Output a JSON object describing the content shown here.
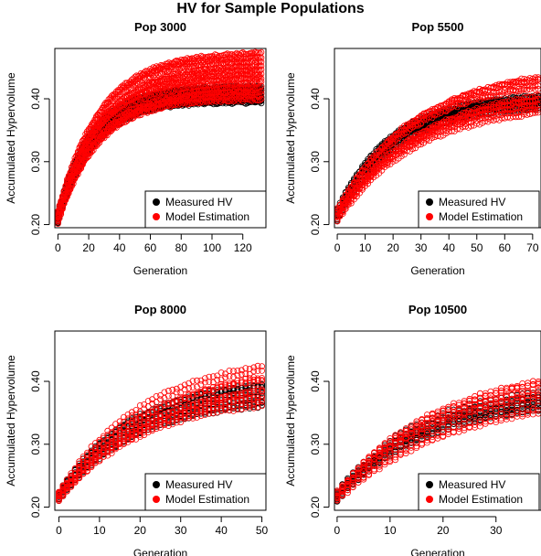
{
  "title": "HV for Sample Populations",
  "colors": {
    "measured": "#000000",
    "model": "#ff0000"
  },
  "chart_data": [
    {
      "type": "scatter",
      "title": "Pop 3000",
      "xlabel": "Generation",
      "ylabel": "Accumulated Hypervolume",
      "xlim": [
        -2,
        135
      ],
      "ylim": [
        0.195,
        0.48
      ],
      "xticks": [
        0,
        20,
        40,
        60,
        80,
        100,
        120
      ],
      "yticks": [
        0.2,
        0.3,
        0.4
      ],
      "ytick_labels": [
        "0.20",
        "0.30",
        "0.40"
      ],
      "legend": [
        "Measured HV",
        "Model Estimation"
      ],
      "legend_position": "bottom-right",
      "x_max": 132,
      "series": [
        {
          "name": "Measured HV",
          "start": [
            0.203,
            0.22
          ],
          "end": [
            0.395,
            0.42
          ],
          "k": 0.045,
          "x_step": 1
        },
        {
          "name": "Model Estimation",
          "start": [
            0.203,
            0.22
          ],
          "end": [
            0.4,
            0.475
          ],
          "k": 0.038,
          "x_step": 1
        }
      ]
    },
    {
      "type": "scatter",
      "title": "Pop 5500",
      "xlabel": "Generation",
      "ylabel": "Accumulated Hypervolume",
      "xlim": [
        -1,
        73
      ],
      "ylim": [
        0.195,
        0.48
      ],
      "xticks": [
        0,
        10,
        20,
        30,
        40,
        50,
        60,
        70
      ],
      "yticks": [
        0.2,
        0.3,
        0.4
      ],
      "ytick_labels": [
        "0.20",
        "0.30",
        "0.40"
      ],
      "legend": [
        "Measured HV",
        "Model Estimation"
      ],
      "legend_position": "bottom-right",
      "x_max": 72,
      "series": [
        {
          "name": "Measured HV",
          "start": [
            0.205,
            0.225
          ],
          "end": [
            0.39,
            0.41
          ],
          "k": 0.05,
          "x_step": 1
        },
        {
          "name": "Model Estimation",
          "start": [
            0.205,
            0.225
          ],
          "end": [
            0.39,
            0.455
          ],
          "k": 0.035,
          "x_step": 1
        }
      ]
    },
    {
      "type": "scatter",
      "title": "Pop 8000",
      "xlabel": "Generation",
      "ylabel": "Accumulated Hypervolume",
      "xlim": [
        -1,
        51
      ],
      "ylim": [
        0.195,
        0.48
      ],
      "xticks": [
        0,
        10,
        20,
        30,
        40,
        50
      ],
      "yticks": [
        0.2,
        0.3,
        0.4
      ],
      "ytick_labels": [
        "0.20",
        "0.30",
        "0.40"
      ],
      "legend": [
        "Measured HV",
        "Model Estimation"
      ],
      "legend_position": "bottom-right",
      "x_max": 50,
      "series": [
        {
          "name": "Measured HV",
          "start": [
            0.21,
            0.225
          ],
          "end": [
            0.37,
            0.41
          ],
          "k": 0.055,
          "x_step": 1
        },
        {
          "name": "Model Estimation",
          "start": [
            0.21,
            0.225
          ],
          "end": [
            0.375,
            0.445
          ],
          "k": 0.045,
          "x_step": 1
        }
      ]
    },
    {
      "type": "scatter",
      "title": "Pop 10500",
      "xlabel": "Generation",
      "ylabel": "Accumulated Hypervolume",
      "xlim": [
        -0.5,
        38.5
      ],
      "ylim": [
        0.195,
        0.48
      ],
      "xticks": [
        0,
        10,
        20,
        30
      ],
      "yticks": [
        0.2,
        0.3,
        0.4
      ],
      "ytick_labels": [
        "0.20",
        "0.30",
        "0.40"
      ],
      "legend": [
        "Measured HV",
        "Model Estimation"
      ],
      "legend_position": "bottom-right",
      "x_max": 38,
      "series": [
        {
          "name": "Measured HV",
          "start": [
            0.21,
            0.225
          ],
          "end": [
            0.37,
            0.4
          ],
          "k": 0.06,
          "x_step": 1
        },
        {
          "name": "Model Estimation",
          "start": [
            0.21,
            0.225
          ],
          "end": [
            0.38,
            0.43
          ],
          "k": 0.05,
          "x_step": 1
        }
      ]
    }
  ]
}
